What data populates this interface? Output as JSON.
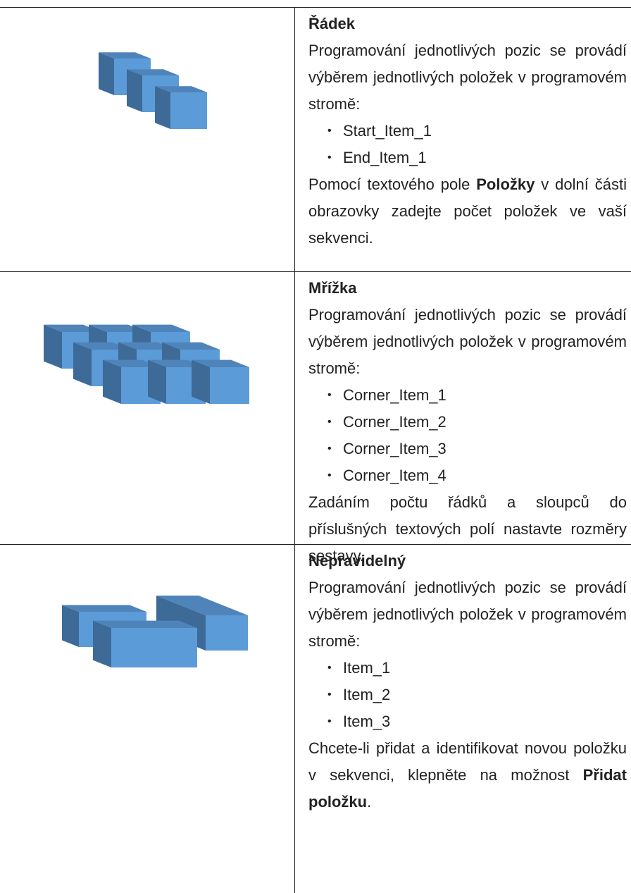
{
  "rows": [
    {
      "title": "Řádek",
      "intro": "Programování jednotlivých pozic se provádí výběrem jednotlivých položek v programovém stromě:",
      "items": [
        "Start_Item_1",
        "End_Item_1"
      ],
      "outro": [
        "Pomocí textového pole ",
        "Položky",
        " v dolní části obrazovky zadejte počet položek ve vaší sekvenci."
      ]
    },
    {
      "title": "Mřížka",
      "intro": "Programování jednotlivých pozic se provádí výběrem jednotlivých položek v programovém stromě:",
      "items": [
        "Corner_Item_1",
        "Corner_Item_2",
        "Corner_Item_3",
        "Corner_Item_4"
      ],
      "outro": [
        "Zadáním počtu řádků a sloupců do příslušných textových polí nastavte rozměry sestavy."
      ]
    },
    {
      "title": "Nepravidelný",
      "intro": "Programování jednotlivých pozic se provádí výběrem jednotlivých položek v programovém stromě:",
      "items": [
        "Item_1",
        "Item_2",
        "Item_3"
      ],
      "outro": [
        "Chcete-li přidat a identifikovat novou položku v sekvenci, klepněte na možnost ",
        "Přidat položku",
        "."
      ]
    }
  ]
}
